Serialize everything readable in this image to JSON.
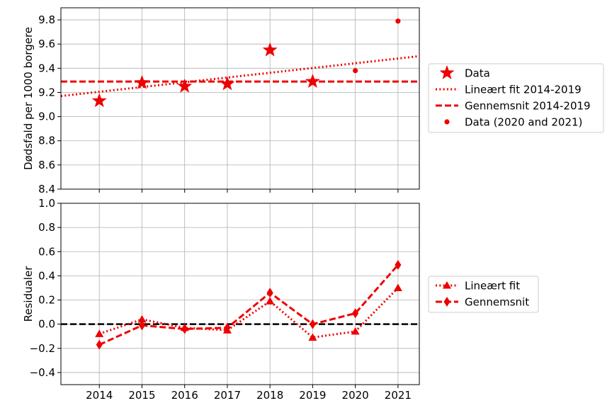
{
  "colors": {
    "series": "#ee0000",
    "zero_line": "#000000",
    "grid": "#b0b0b0",
    "legend_border": "#cccccc"
  },
  "chart_data": [
    {
      "type": "scatter",
      "title": "",
      "xlabel": "",
      "ylabel": "Dødsfald per 1000 borgere",
      "xlim": [
        2013.1,
        2021.5
      ],
      "ylim": [
        8.4,
        9.9
      ],
      "xticks": [
        2014,
        2015,
        2016,
        2017,
        2018,
        2019,
        2020,
        2021
      ],
      "yticks": [
        8.4,
        8.6,
        8.8,
        9.0,
        9.2,
        9.4,
        9.6,
        9.8
      ],
      "ytick_labels": [
        "8.4",
        "8.6",
        "8.8",
        "9.0",
        "9.2",
        "9.4",
        "9.6",
        "9.8"
      ],
      "grid": true,
      "legend_placement": "outside right",
      "series": [
        {
          "name": "Data",
          "marker": "star",
          "x": [
            2014,
            2015,
            2016,
            2017,
            2018,
            2019
          ],
          "y": [
            9.13,
            9.28,
            9.25,
            9.27,
            9.55,
            9.29
          ]
        },
        {
          "name": "Lineært fit 2014-2019",
          "line": "dotted",
          "x": [
            2013.1,
            2021.5
          ],
          "y": [
            9.17,
            9.5
          ]
        },
        {
          "name": "Gennemsnit 2014-2019",
          "line": "dashed",
          "x": [
            2013.1,
            2021.5
          ],
          "y": [
            9.29,
            9.29
          ]
        },
        {
          "name": "Data (2020 and 2021)",
          "marker": "dot",
          "x": [
            2020,
            2021
          ],
          "y": [
            9.38,
            9.79
          ]
        }
      ]
    },
    {
      "type": "line",
      "title": "",
      "xlabel": "",
      "ylabel": "Residualer",
      "xlim": [
        2013.1,
        2021.5
      ],
      "ylim": [
        -0.5,
        1.0
      ],
      "xticks": [
        2014,
        2015,
        2016,
        2017,
        2018,
        2019,
        2020,
        2021
      ],
      "xtick_labels": [
        "2014",
        "2015",
        "2016",
        "2017",
        "2018",
        "2019",
        "2020",
        "2021"
      ],
      "yticks": [
        -0.4,
        -0.2,
        0.0,
        0.2,
        0.4,
        0.6,
        0.8,
        1.0
      ],
      "ytick_labels": [
        "−0.4",
        "−0.2",
        "0.0",
        "0.2",
        "0.4",
        "0.6",
        "0.8",
        "1.0"
      ],
      "grid": true,
      "reference_line": 0,
      "legend_placement": "outside right",
      "series": [
        {
          "name": "Lineært fit",
          "marker": "triangle",
          "line": "dotted",
          "x": [
            2014,
            2015,
            2016,
            2017,
            2018,
            2019,
            2020,
            2021
          ],
          "y": [
            -0.08,
            0.04,
            -0.03,
            -0.05,
            0.19,
            -0.11,
            -0.06,
            0.3
          ]
        },
        {
          "name": "Gennemsnit",
          "marker": "diamond",
          "line": "dashed",
          "x": [
            2014,
            2015,
            2016,
            2017,
            2018,
            2019,
            2020,
            2021
          ],
          "y": [
            -0.17,
            -0.01,
            -0.04,
            -0.03,
            0.26,
            0.0,
            0.09,
            0.49
          ]
        }
      ]
    }
  ]
}
